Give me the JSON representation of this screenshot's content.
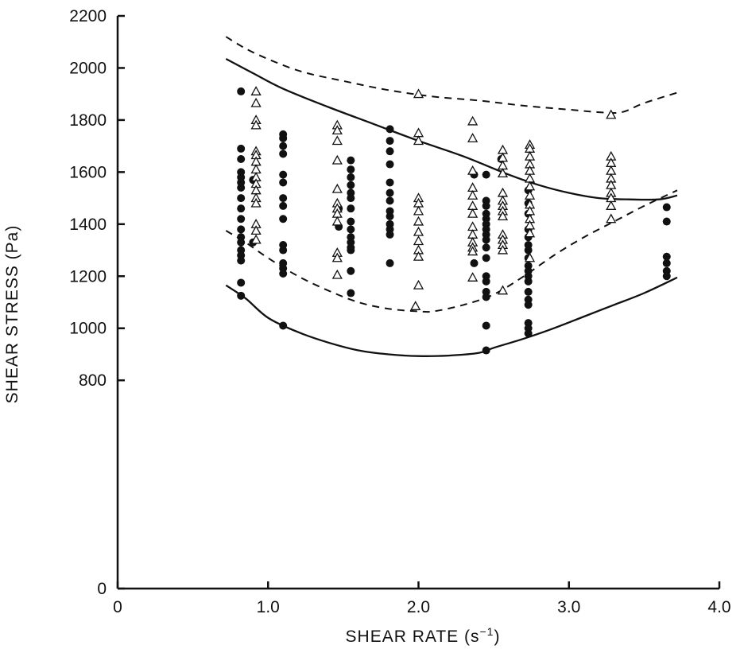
{
  "chart_data": {
    "type": "scatter",
    "title": "",
    "xlabel_main": "SHEAR RATE (s",
    "xlabel_exp": "−1",
    "xlabel_close": ")",
    "ylabel": "SHEAR STRESS (Pa)",
    "xlim": [
      0,
      4.0
    ],
    "ylim": [
      0,
      2200
    ],
    "x_ticks": [
      {
        "v": 0,
        "label": "0"
      },
      {
        "v": 1.0,
        "label": "1.0"
      },
      {
        "v": 2.0,
        "label": "2.0"
      },
      {
        "v": 3.0,
        "label": "3.0"
      },
      {
        "v": 4.0,
        "label": "4.0"
      }
    ],
    "y_ticks": [
      {
        "v": 0,
        "label": "0"
      },
      {
        "v": 800,
        "label": "800"
      },
      {
        "v": 1000,
        "label": "1000"
      },
      {
        "v": 1200,
        "label": "1200"
      },
      {
        "v": 1400,
        "label": "1400"
      },
      {
        "v": 1600,
        "label": "1600"
      },
      {
        "v": 1800,
        "label": "1800"
      },
      {
        "v": 2000,
        "label": "2000"
      },
      {
        "v": 2200,
        "label": "2200"
      }
    ],
    "grid": false,
    "series": [
      {
        "marker": "filled-circle",
        "color": "#111111",
        "points": [
          [
            0.82,
            1910
          ],
          [
            0.82,
            1690
          ],
          [
            0.82,
            1650
          ],
          [
            0.82,
            1600
          ],
          [
            0.82,
            1580
          ],
          [
            0.82,
            1560
          ],
          [
            0.82,
            1540
          ],
          [
            0.82,
            1500
          ],
          [
            0.82,
            1460
          ],
          [
            0.82,
            1420
          ],
          [
            0.82,
            1380
          ],
          [
            0.82,
            1350
          ],
          [
            0.82,
            1330
          ],
          [
            0.82,
            1300
          ],
          [
            0.82,
            1280
          ],
          [
            0.82,
            1260
          ],
          [
            0.82,
            1175
          ],
          [
            0.82,
            1125
          ],
          [
            0.9,
            1570
          ],
          [
            0.9,
            1330
          ],
          [
            1.1,
            1745
          ],
          [
            1.1,
            1730
          ],
          [
            1.1,
            1700
          ],
          [
            1.1,
            1670
          ],
          [
            1.1,
            1590
          ],
          [
            1.1,
            1560
          ],
          [
            1.1,
            1500
          ],
          [
            1.1,
            1470
          ],
          [
            1.1,
            1420
          ],
          [
            1.1,
            1320
          ],
          [
            1.1,
            1300
          ],
          [
            1.1,
            1250
          ],
          [
            1.1,
            1230
          ],
          [
            1.1,
            1210
          ],
          [
            1.1,
            1010
          ],
          [
            1.47,
            1460
          ],
          [
            1.47,
            1390
          ],
          [
            1.55,
            1645
          ],
          [
            1.55,
            1610
          ],
          [
            1.55,
            1580
          ],
          [
            1.55,
            1550
          ],
          [
            1.55,
            1520
          ],
          [
            1.55,
            1500
          ],
          [
            1.55,
            1460
          ],
          [
            1.55,
            1410
          ],
          [
            1.55,
            1380
          ],
          [
            1.55,
            1350
          ],
          [
            1.55,
            1330
          ],
          [
            1.55,
            1310
          ],
          [
            1.55,
            1300
          ],
          [
            1.55,
            1220
          ],
          [
            1.55,
            1135
          ],
          [
            1.81,
            1765
          ],
          [
            1.81,
            1720
          ],
          [
            1.81,
            1680
          ],
          [
            1.81,
            1630
          ],
          [
            1.81,
            1560
          ],
          [
            1.81,
            1520
          ],
          [
            1.81,
            1490
          ],
          [
            1.81,
            1450
          ],
          [
            1.81,
            1430
          ],
          [
            1.81,
            1400
          ],
          [
            1.81,
            1380
          ],
          [
            1.81,
            1360
          ],
          [
            1.81,
            1250
          ],
          [
            2.37,
            1590
          ],
          [
            2.37,
            1250
          ],
          [
            2.45,
            1590
          ],
          [
            2.45,
            1490
          ],
          [
            2.45,
            1470
          ],
          [
            2.45,
            1440
          ],
          [
            2.45,
            1420
          ],
          [
            2.45,
            1400
          ],
          [
            2.45,
            1380
          ],
          [
            2.45,
            1360
          ],
          [
            2.45,
            1340
          ],
          [
            2.45,
            1310
          ],
          [
            2.45,
            1270
          ],
          [
            2.45,
            1200
          ],
          [
            2.45,
            1180
          ],
          [
            2.45,
            1140
          ],
          [
            2.45,
            1120
          ],
          [
            2.45,
            1010
          ],
          [
            2.45,
            915
          ],
          [
            2.55,
            1650
          ],
          [
            2.73,
            1530
          ],
          [
            2.73,
            1480
          ],
          [
            2.73,
            1440
          ],
          [
            2.73,
            1380
          ],
          [
            2.73,
            1350
          ],
          [
            2.73,
            1320
          ],
          [
            2.73,
            1300
          ],
          [
            2.73,
            1270
          ],
          [
            2.73,
            1240
          ],
          [
            2.73,
            1220
          ],
          [
            2.73,
            1200
          ],
          [
            2.73,
            1180
          ],
          [
            2.73,
            1140
          ],
          [
            2.73,
            1110
          ],
          [
            2.73,
            1090
          ],
          [
            2.73,
            1020
          ],
          [
            2.73,
            1000
          ],
          [
            2.73,
            980
          ],
          [
            3.65,
            1465
          ],
          [
            3.65,
            1410
          ],
          [
            3.65,
            1275
          ],
          [
            3.65,
            1250
          ],
          [
            3.65,
            1220
          ],
          [
            3.65,
            1200
          ]
        ]
      },
      {
        "marker": "open-triangle",
        "color": "#111111",
        "points": [
          [
            0.92,
            1910
          ],
          [
            0.92,
            1865
          ],
          [
            0.92,
            1800
          ],
          [
            0.92,
            1780
          ],
          [
            0.92,
            1680
          ],
          [
            0.92,
            1665
          ],
          [
            0.92,
            1640
          ],
          [
            0.92,
            1610
          ],
          [
            0.92,
            1580
          ],
          [
            0.92,
            1555
          ],
          [
            0.92,
            1530
          ],
          [
            0.92,
            1500
          ],
          [
            0.92,
            1480
          ],
          [
            0.92,
            1400
          ],
          [
            0.92,
            1375
          ],
          [
            0.92,
            1340
          ],
          [
            1.46,
            1780
          ],
          [
            1.46,
            1760
          ],
          [
            1.46,
            1720
          ],
          [
            1.46,
            1645
          ],
          [
            1.46,
            1535
          ],
          [
            1.46,
            1480
          ],
          [
            1.46,
            1460
          ],
          [
            1.46,
            1440
          ],
          [
            1.46,
            1410
          ],
          [
            1.46,
            1290
          ],
          [
            1.46,
            1270
          ],
          [
            1.46,
            1205
          ],
          [
            2.0,
            1900
          ],
          [
            2.0,
            1750
          ],
          [
            2.0,
            1720
          ],
          [
            2.0,
            1500
          ],
          [
            2.0,
            1480
          ],
          [
            2.0,
            1450
          ],
          [
            2.0,
            1410
          ],
          [
            2.0,
            1370
          ],
          [
            2.0,
            1335
          ],
          [
            2.0,
            1300
          ],
          [
            2.0,
            1275
          ],
          [
            2.0,
            1165
          ],
          [
            1.98,
            1085
          ],
          [
            2.36,
            1795
          ],
          [
            2.36,
            1730
          ],
          [
            2.36,
            1605
          ],
          [
            2.36,
            1540
          ],
          [
            2.36,
            1510
          ],
          [
            2.36,
            1470
          ],
          [
            2.36,
            1440
          ],
          [
            2.36,
            1390
          ],
          [
            2.36,
            1360
          ],
          [
            2.36,
            1330
          ],
          [
            2.36,
            1310
          ],
          [
            2.36,
            1295
          ],
          [
            2.36,
            1195
          ],
          [
            2.56,
            1685
          ],
          [
            2.56,
            1655
          ],
          [
            2.56,
            1625
          ],
          [
            2.56,
            1595
          ],
          [
            2.56,
            1520
          ],
          [
            2.56,
            1490
          ],
          [
            2.56,
            1470
          ],
          [
            2.56,
            1450
          ],
          [
            2.56,
            1430
          ],
          [
            2.56,
            1360
          ],
          [
            2.56,
            1340
          ],
          [
            2.56,
            1320
          ],
          [
            2.56,
            1300
          ],
          [
            2.56,
            1145
          ],
          [
            2.74,
            1705
          ],
          [
            2.74,
            1690
          ],
          [
            2.74,
            1660
          ],
          [
            2.74,
            1630
          ],
          [
            2.74,
            1605
          ],
          [
            2.74,
            1575
          ],
          [
            2.74,
            1545
          ],
          [
            2.74,
            1510
          ],
          [
            2.74,
            1475
          ],
          [
            2.74,
            1450
          ],
          [
            2.74,
            1420
          ],
          [
            2.74,
            1395
          ],
          [
            2.74,
            1365
          ],
          [
            2.74,
            1270
          ],
          [
            3.28,
            1820
          ],
          [
            3.28,
            1660
          ],
          [
            3.28,
            1635
          ],
          [
            3.28,
            1605
          ],
          [
            3.28,
            1575
          ],
          [
            3.28,
            1550
          ],
          [
            3.28,
            1520
          ],
          [
            3.28,
            1500
          ],
          [
            3.28,
            1470
          ],
          [
            3.28,
            1420
          ]
        ]
      }
    ],
    "curves": [
      {
        "style": "dashed",
        "points": [
          [
            0.72,
            2120
          ],
          [
            0.9,
            2060
          ],
          [
            1.2,
            1990
          ],
          [
            1.5,
            1950
          ],
          [
            1.8,
            1915
          ],
          [
            2.1,
            1890
          ],
          [
            2.4,
            1875
          ],
          [
            2.7,
            1855
          ],
          [
            3.0,
            1840
          ],
          [
            3.2,
            1830
          ],
          [
            3.35,
            1830
          ],
          [
            3.5,
            1865
          ],
          [
            3.72,
            1905
          ]
        ]
      },
      {
        "style": "solid",
        "points": [
          [
            0.72,
            2035
          ],
          [
            0.9,
            1980
          ],
          [
            1.1,
            1920
          ],
          [
            1.4,
            1850
          ],
          [
            1.7,
            1785
          ],
          [
            2.0,
            1720
          ],
          [
            2.3,
            1660
          ],
          [
            2.6,
            1590
          ],
          [
            2.8,
            1550
          ],
          [
            3.0,
            1520
          ],
          [
            3.2,
            1500
          ],
          [
            3.4,
            1495
          ],
          [
            3.6,
            1495
          ],
          [
            3.72,
            1510
          ]
        ]
      },
      {
        "style": "dashed",
        "points": [
          [
            0.72,
            1375
          ],
          [
            0.85,
            1330
          ],
          [
            1.0,
            1270
          ],
          [
            1.2,
            1200
          ],
          [
            1.4,
            1145
          ],
          [
            1.6,
            1100
          ],
          [
            1.8,
            1075
          ],
          [
            2.0,
            1065
          ],
          [
            2.1,
            1065
          ],
          [
            2.3,
            1090
          ],
          [
            2.5,
            1130
          ],
          [
            2.7,
            1200
          ],
          [
            2.9,
            1280
          ],
          [
            3.1,
            1350
          ],
          [
            3.3,
            1410
          ],
          [
            3.5,
            1470
          ],
          [
            3.72,
            1530
          ]
        ]
      },
      {
        "style": "solid",
        "points": [
          [
            0.72,
            1165
          ],
          [
            0.85,
            1115
          ],
          [
            1.0,
            1040
          ],
          [
            1.2,
            985
          ],
          [
            1.4,
            945
          ],
          [
            1.6,
            915
          ],
          [
            1.8,
            900
          ],
          [
            2.0,
            893
          ],
          [
            2.2,
            895
          ],
          [
            2.4,
            905
          ],
          [
            2.5,
            925
          ],
          [
            2.7,
            960
          ],
          [
            2.9,
            1000
          ],
          [
            3.1,
            1045
          ],
          [
            3.3,
            1090
          ],
          [
            3.5,
            1135
          ],
          [
            3.72,
            1195
          ]
        ]
      }
    ]
  }
}
